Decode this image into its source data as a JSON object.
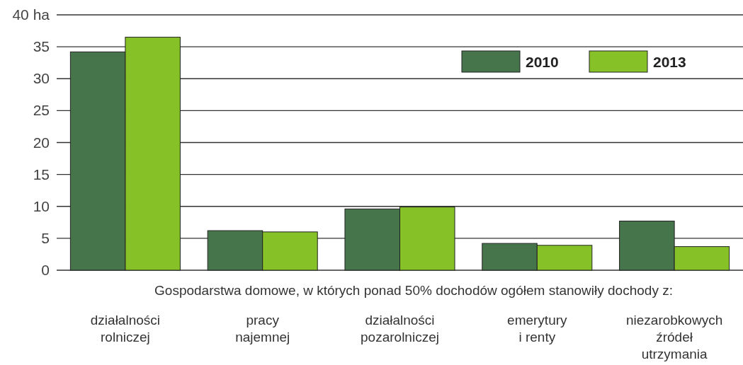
{
  "chart_data": {
    "type": "bar",
    "xlabel": "Gospodarstwa domowe, w których ponad 50% dochodów ogółem stanowiły dochody z:",
    "categories": [
      "działalności\nrolniczej",
      "pracy\nnajemnej",
      "działalności\npozarolniczej",
      "emerytury\ni renty",
      "niezarobkowych\nźródeł\nutrzymania"
    ],
    "series": [
      {
        "name": "2010",
        "color": "#46754c",
        "values": [
          34.2,
          6.2,
          9.6,
          4.2,
          7.7
        ]
      },
      {
        "name": "2013",
        "color": "#86c227",
        "values": [
          36.5,
          6.0,
          9.9,
          3.9,
          3.7
        ]
      }
    ],
    "ylim": [
      0,
      40
    ],
    "yticks": [
      0,
      5,
      10,
      15,
      20,
      25,
      30,
      35,
      {
        "value": 40,
        "label": "40 ha"
      }
    ],
    "grid": "y",
    "legend": "top right"
  }
}
